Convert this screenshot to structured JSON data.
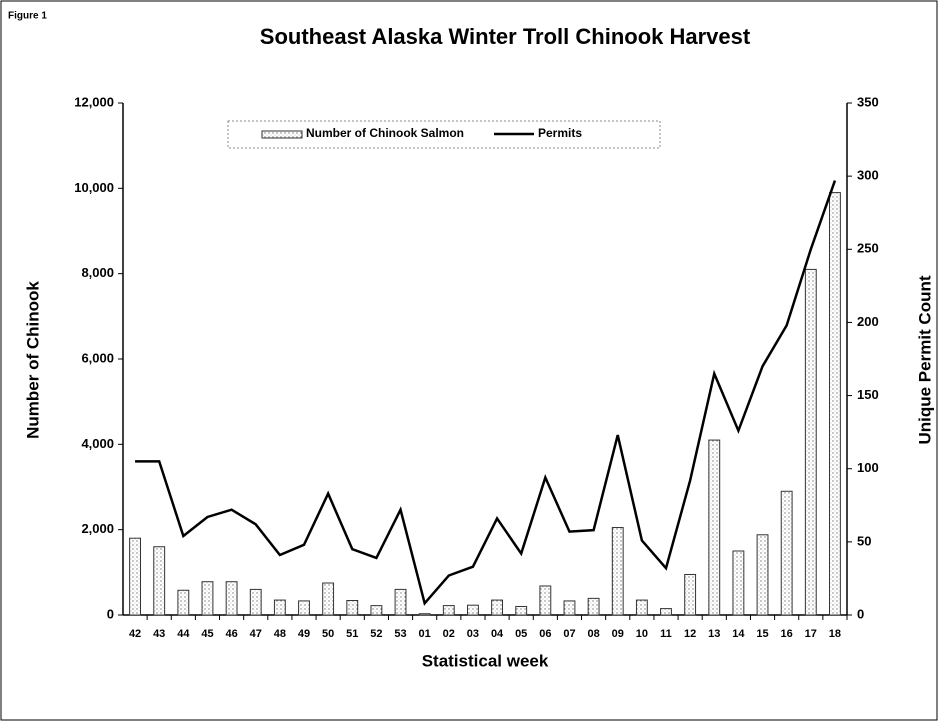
{
  "figure_label": "Figure 1",
  "chart_data": {
    "type": "bar-line",
    "title": "Southeast Alaska Winter Troll Chinook Harvest",
    "x_label": "Statistical week",
    "y_label": "Number of Chinook",
    "y2_label": "Unique Permit Count",
    "categories": [
      "42",
      "43",
      "44",
      "45",
      "46",
      "47",
      "48",
      "49",
      "50",
      "51",
      "52",
      "53",
      "01",
      "02",
      "03",
      "04",
      "05",
      "06",
      "07",
      "08",
      "09",
      "10",
      "11",
      "12",
      "13",
      "14",
      "15",
      "16",
      "17",
      "18"
    ],
    "series": [
      {
        "name": "Number of Chinook Salmon",
        "type": "bar",
        "color": "#ffffff",
        "values": [
          1800,
          1600,
          580,
          780,
          780,
          600,
          350,
          330,
          750,
          340,
          220,
          600,
          30,
          220,
          230,
          350,
          200,
          680,
          330,
          390,
          2050,
          350,
          150,
          950,
          4100,
          1500,
          1880,
          2900,
          8100,
          9900
        ]
      },
      {
        "name": "Permits",
        "type": "line",
        "color": "#000000",
        "axis": "y2",
        "values": [
          105,
          105,
          54,
          67,
          72,
          62,
          41,
          48,
          83,
          45,
          39,
          72,
          8,
          27,
          33,
          66,
          42,
          94,
          57,
          58,
          123,
          51,
          32,
          92,
          165,
          126,
          170,
          198,
          250,
          297
        ]
      }
    ],
    "ylim": [
      0,
      12000
    ],
    "yticks": [
      0,
      {
        "value": 2000,
        "label": "2,000"
      },
      {
        "value": 4000,
        "label": "4,000"
      },
      {
        "value": 6000,
        "label": "6,000"
      },
      {
        "value": 8000,
        "label": "8,000"
      },
      {
        "value": 10000,
        "label": "10,000"
      },
      {
        "value": 12000,
        "label": "12,000"
      }
    ],
    "y2lim": [
      0,
      350
    ],
    "y2ticks": [
      0,
      50,
      100,
      150,
      200,
      250,
      300,
      350
    ],
    "legend": "top"
  }
}
